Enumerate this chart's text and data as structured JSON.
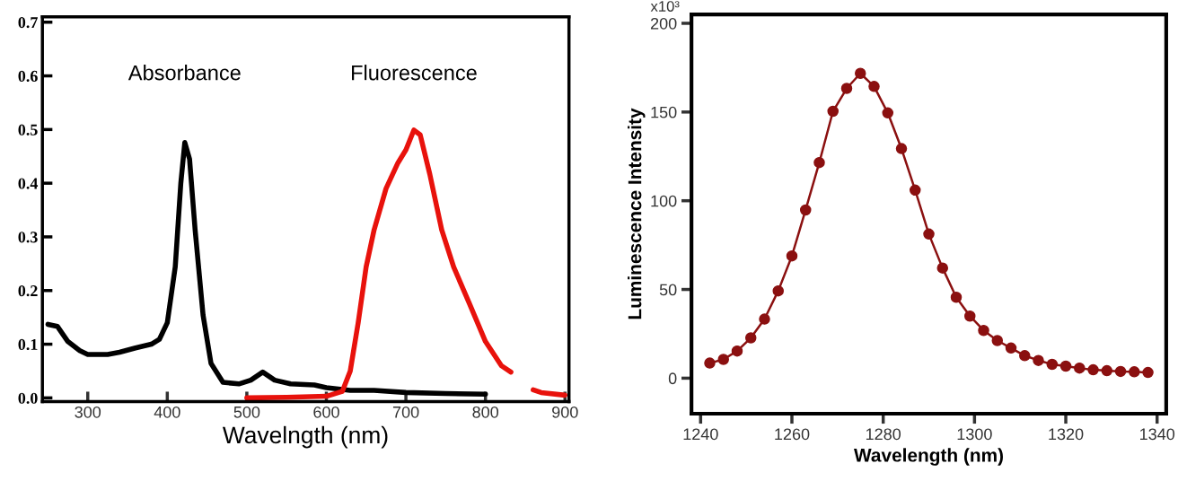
{
  "chart_data": [
    {
      "type": "line",
      "xlabel": "Wavelngth (nm)",
      "xlim": [
        243,
        905
      ],
      "ylim": [
        -0.007,
        0.71
      ],
      "xticks": [
        300,
        400,
        500,
        600,
        700,
        800,
        900
      ],
      "yticks": [
        {
          "value": 0,
          "label": "0.0"
        },
        {
          "value": 0.1,
          "label": "0.1"
        },
        {
          "value": 0.2,
          "label": "0.2"
        },
        {
          "value": 0.3,
          "label": "0.3"
        },
        {
          "value": 0.4,
          "label": "0.4"
        },
        {
          "value": 0.5,
          "label": "0.5"
        },
        {
          "value": 0.6,
          "label": "0.6"
        },
        {
          "value": 0.7,
          "label": "0.7"
        }
      ],
      "grid": false,
      "legend": false,
      "annotations": [
        "Absorbance",
        "Fluorescence"
      ],
      "series": [
        {
          "color": "#000000",
          "x": [
            250,
            262,
            275,
            290,
            300,
            325,
            340,
            360,
            380,
            390,
            400,
            410,
            417,
            422,
            428,
            435,
            445,
            455,
            470,
            490,
            505,
            520,
            535,
            555,
            585,
            600,
            630,
            660,
            700,
            750,
            800
          ],
          "values": [
            0.137,
            0.133,
            0.105,
            0.088,
            0.081,
            0.081,
            0.085,
            0.093,
            0.1,
            0.109,
            0.14,
            0.244,
            0.4,
            0.476,
            0.445,
            0.313,
            0.154,
            0.064,
            0.029,
            0.026,
            0.033,
            0.048,
            0.033,
            0.026,
            0.024,
            0.019,
            0.014,
            0.014,
            0.01,
            0.008,
            0.007
          ]
        },
        {
          "color": "#e8120c",
          "x": [
            500,
            550,
            600,
            620,
            630,
            640,
            650,
            660,
            675,
            690,
            700,
            710,
            718,
            730,
            745,
            760,
            780,
            800,
            820,
            832,
            846,
            860,
            870,
            900
          ],
          "values": [
            0.0,
            0.001,
            0.003,
            0.012,
            0.05,
            0.14,
            0.244,
            0.313,
            0.39,
            0.438,
            0.462,
            0.499,
            0.49,
            0.417,
            0.313,
            0.244,
            0.175,
            0.105,
            0.06,
            0.048,
            null,
            0.015,
            0.01,
            0.005
          ]
        }
      ]
    },
    {
      "type": "line",
      "xlabel": "Wavelength (nm)",
      "ylabel": "Luminescence Intensity",
      "xlim": [
        1238,
        1342
      ],
      "ylim": [
        -20,
        205
      ],
      "annotations": [
        "x10³"
      ],
      "xticks": [
        1240,
        1260,
        1280,
        1300,
        1320,
        1340
      ],
      "yticks": [
        0,
        50,
        100,
        150,
        200
      ],
      "grid": false,
      "legend": false,
      "marker": "circle",
      "series": [
        {
          "color": "#8b1010",
          "x": [
            1242,
            1245,
            1248,
            1251,
            1254,
            1257,
            1260,
            1263,
            1266,
            1269,
            1272,
            1275,
            1278,
            1281,
            1284,
            1287,
            1290,
            1293,
            1296,
            1299,
            1302,
            1305,
            1308,
            1311,
            1314,
            1317,
            1320,
            1323,
            1326,
            1329,
            1332,
            1335,
            1338
          ],
          "values": [
            8.5,
            10.6,
            15.3,
            22.7,
            33.3,
            49.2,
            68.9,
            94.8,
            121.5,
            150.4,
            163.3,
            171.8,
            164.4,
            149.5,
            129.4,
            106,
            81.2,
            62.1,
            45.6,
            35,
            26.9,
            21.2,
            17,
            12.7,
            10,
            7.8,
            6.8,
            5.7,
            4.7,
            4.2,
            3.8,
            3.6,
            3.2
          ]
        }
      ]
    }
  ]
}
